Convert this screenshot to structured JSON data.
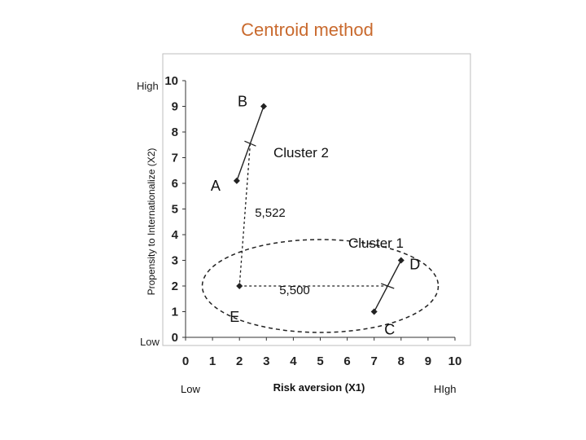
{
  "title": "Centroid method",
  "y_side_labels": {
    "high": "High",
    "low": "Low"
  },
  "x_side_labels": {
    "low": "Low",
    "high": "HIgh"
  },
  "chart_data": {
    "type": "scatter",
    "xlabel": "Risk aversion (X1)",
    "ylabel": "Propensity to Internationalize (X2)",
    "xlim": [
      0,
      10
    ],
    "ylim": [
      0,
      10
    ],
    "xticks": [
      0,
      1,
      2,
      3,
      4,
      5,
      6,
      7,
      8,
      9,
      10
    ],
    "yticks": [
      0,
      1,
      2,
      3,
      4,
      5,
      6,
      7,
      8,
      9,
      10
    ],
    "grid": false,
    "points": [
      {
        "label": "A",
        "x": 1.9,
        "y": 6.1
      },
      {
        "label": "B",
        "x": 2.9,
        "y": 9.0
      },
      {
        "label": "C",
        "x": 7.0,
        "y": 1.0
      },
      {
        "label": "D",
        "x": 8.0,
        "y": 3.0
      },
      {
        "label": "E",
        "x": 2.0,
        "y": 2.0
      }
    ],
    "annotations": [
      {
        "text": "Cluster 2"
      },
      {
        "text": "Cluster 1"
      },
      {
        "text": "5,522"
      },
      {
        "text": "5,500"
      }
    ],
    "colors": {
      "title": "#c96a2e",
      "marker": "#222222"
    }
  }
}
